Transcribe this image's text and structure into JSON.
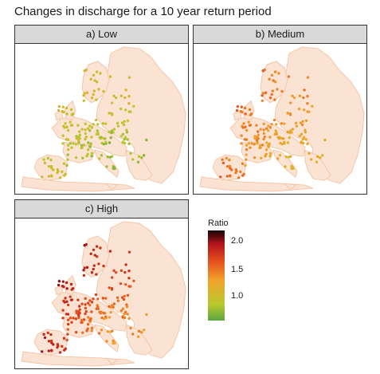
{
  "title": "Changes in discharge for a 10 year return period",
  "panels": [
    {
      "label": "a) Low",
      "scenario": "low"
    },
    {
      "label": "b) Medium",
      "scenario": "medium"
    },
    {
      "label": "c) High",
      "scenario": "high"
    }
  ],
  "legend": {
    "title": "Ratio",
    "ticks": [
      {
        "label": "2.0",
        "value": 2.0
      },
      {
        "label": "1.5",
        "value": 1.5
      },
      {
        "label": "1.0",
        "value": 1.0
      }
    ],
    "range": [
      0.75,
      2.2
    ],
    "colors": [
      "#5ca63f",
      "#b9c92f",
      "#f2a12b",
      "#e5531f",
      "#b3141b",
      "#130303"
    ]
  },
  "map_style": {
    "land_fill": "#fbe3d3",
    "land_stroke": "#f4c7aa"
  }
}
